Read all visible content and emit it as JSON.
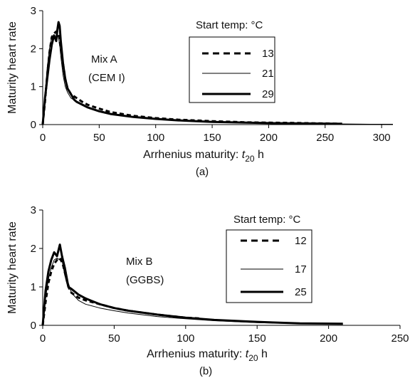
{
  "chart_data": [
    {
      "type": "line",
      "panel_label": "(a)",
      "ylabel": "Maturity heart rate",
      "xlabel_main": "Arrhenius maturity: ",
      "xlabel_var": "t",
      "xlabel_sub": "20",
      "xlabel_unit": " h",
      "xlim": [
        0,
        310
      ],
      "ylim": [
        0,
        3
      ],
      "xticks": [
        0,
        50,
        100,
        150,
        200,
        250,
        300
      ],
      "yticks": [
        0,
        1,
        2,
        3
      ],
      "grid": false,
      "legend_title": "Start temp: °C",
      "legend_position": "top-right",
      "annotation": [
        "Mix A",
        "(CEM I)"
      ],
      "series": [
        {
          "name": "13",
          "style": "dashed",
          "stroke_width": 3,
          "x": [
            0,
            2,
            4,
            6,
            8,
            10,
            12,
            14,
            15,
            16,
            18,
            20,
            22,
            25,
            30,
            35,
            40,
            50,
            60,
            80,
            100,
            120,
            150,
            180,
            200,
            230,
            250,
            265
          ],
          "y": [
            0,
            0.6,
            1.3,
            1.9,
            2.3,
            2.4,
            2.45,
            2.4,
            2.2,
            2.0,
            1.6,
            1.2,
            0.95,
            0.8,
            0.7,
            0.6,
            0.52,
            0.42,
            0.33,
            0.23,
            0.17,
            0.13,
            0.09,
            0.06,
            0.05,
            0.04,
            0.03,
            0.02
          ]
        },
        {
          "name": "21",
          "style": "solid",
          "stroke_width": 1,
          "x": [
            0,
            2,
            4,
            6,
            8,
            10,
            12,
            13,
            14,
            15,
            16,
            18,
            20,
            22,
            25,
            30,
            40,
            50,
            60,
            80,
            100,
            120,
            150,
            180,
            200,
            250,
            290,
            310
          ],
          "y": [
            0,
            0.8,
            1.5,
            2.0,
            2.3,
            2.35,
            2.2,
            2.35,
            2.3,
            2.1,
            1.8,
            1.3,
            1.0,
            0.85,
            0.7,
            0.6,
            0.45,
            0.37,
            0.3,
            0.21,
            0.15,
            0.11,
            0.07,
            0.05,
            0.04,
            0.02,
            0.01,
            0.01
          ]
        },
        {
          "name": "29",
          "style": "solid",
          "stroke_width": 3,
          "x": [
            0,
            2,
            4,
            6,
            8,
            10,
            12,
            13,
            14,
            15,
            16,
            18,
            20,
            22,
            25,
            28,
            30,
            40,
            50,
            60,
            80,
            100,
            120,
            150,
            180,
            200,
            230,
            265
          ],
          "y": [
            0,
            0.7,
            1.2,
            1.7,
            2.1,
            2.35,
            2.2,
            2.5,
            2.7,
            2.6,
            2.2,
            1.6,
            1.2,
            0.95,
            0.8,
            0.65,
            0.6,
            0.45,
            0.35,
            0.28,
            0.2,
            0.15,
            0.11,
            0.07,
            0.05,
            0.04,
            0.03,
            0.02
          ]
        }
      ]
    },
    {
      "type": "line",
      "panel_label": "(b)",
      "ylabel": "Maturity heart rate",
      "xlabel_main": "Arrhenius maturity: ",
      "xlabel_var": "t",
      "xlabel_sub": "20",
      "xlabel_unit": " h",
      "xlim": [
        0,
        250
      ],
      "ylim": [
        0,
        3
      ],
      "xticks": [
        0,
        50,
        100,
        150,
        200,
        250
      ],
      "yticks": [
        0,
        1,
        2,
        3
      ],
      "grid": false,
      "legend_title": "Start temp: °C",
      "legend_position": "top-right",
      "annotation": [
        "Mix B",
        "(GGBS)"
      ],
      "series": [
        {
          "name": "12",
          "style": "dashed",
          "stroke_width": 3,
          "x": [
            0,
            2,
            4,
            6,
            8,
            10,
            12,
            14,
            16,
            18,
            20,
            25,
            30,
            40,
            50,
            60,
            80,
            100,
            110
          ],
          "y": [
            0,
            0.6,
            1.1,
            1.4,
            1.6,
            1.7,
            1.75,
            1.6,
            1.3,
            1.0,
            0.85,
            0.72,
            0.65,
            0.55,
            0.45,
            0.38,
            0.28,
            0.2,
            0.18
          ]
        },
        {
          "name": "17",
          "style": "solid",
          "stroke_width": 1,
          "x": [
            0,
            2,
            4,
            6,
            8,
            10,
            12,
            14,
            16,
            18,
            20,
            25,
            30,
            40,
            50,
            60,
            80,
            100,
            120,
            150,
            180,
            210
          ],
          "y": [
            0,
            0.7,
            1.2,
            1.5,
            1.7,
            1.75,
            1.7,
            1.8,
            1.5,
            1.1,
            0.85,
            0.65,
            0.55,
            0.45,
            0.38,
            0.32,
            0.23,
            0.17,
            0.12,
            0.07,
            0.04,
            0.03
          ]
        },
        {
          "name": "25",
          "style": "solid",
          "stroke_width": 3,
          "x": [
            0,
            2,
            4,
            6,
            8,
            10,
            12,
            14,
            16,
            18,
            20,
            25,
            30,
            40,
            50,
            60,
            80,
            100,
            120,
            150,
            180,
            210
          ],
          "y": [
            0,
            0.9,
            1.4,
            1.7,
            1.9,
            1.8,
            2.1,
            1.7,
            1.3,
            1.0,
            0.95,
            0.8,
            0.7,
            0.55,
            0.45,
            0.38,
            0.28,
            0.2,
            0.14,
            0.09,
            0.05,
            0.04
          ]
        }
      ]
    }
  ]
}
